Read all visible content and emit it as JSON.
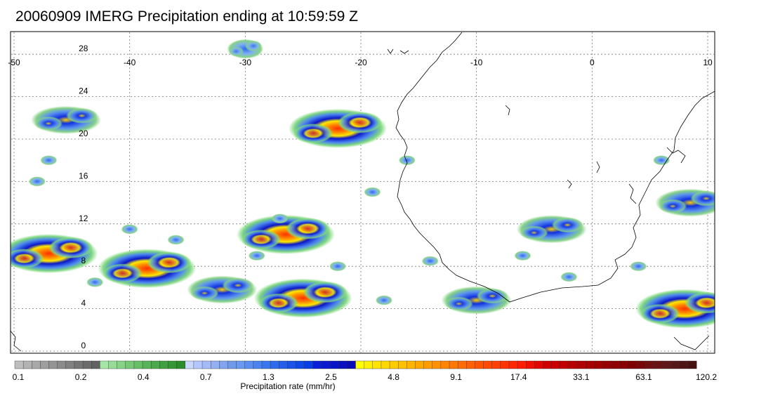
{
  "title": "20060909 IMERG Precipitation ending at 10:59:59 Z",
  "map": {
    "lon_range": [
      -50,
      10
    ],
    "lat_range": [
      -0.5,
      30
    ],
    "lon_ticks": [
      "-50",
      "-40",
      "-30",
      "-20",
      "-10",
      "0",
      "10"
    ],
    "lat_ticks": [
      "0",
      "4",
      "8",
      "12",
      "16",
      "20",
      "24",
      "28"
    ],
    "grid": "dotted",
    "coastline": "West Africa"
  },
  "colorbar": {
    "label": "Precipitation rate (mm/hr)",
    "tick_labels": [
      "0.1",
      "0.2",
      "0.4",
      "0.7",
      "1.3",
      "2.5",
      "4.8",
      "9.1",
      "17.4",
      "33.1",
      "63.1",
      "120.2"
    ],
    "colors": [
      "#bdbdbd",
      "#b2b2b2",
      "#a8a8a8",
      "#9e9e9e",
      "#949494",
      "#8a8a8a",
      "#808080",
      "#767676",
      "#6c6c6c",
      "#626262",
      "#a6e6a6",
      "#96dc96",
      "#86d286",
      "#76c876",
      "#66be66",
      "#58b458",
      "#4aaa4a",
      "#3ea03e",
      "#349634",
      "#2a8c2a",
      "#c8d8ff",
      "#b4c8ff",
      "#a2bbf8",
      "#92b0f2",
      "#82a4ee",
      "#7199ea",
      "#6a9af0",
      "#5a8ef0",
      "#4a82f0",
      "#3a76f0",
      "#2e6aee",
      "#245eec",
      "#1a52ea",
      "#1048e8",
      "#083ee6",
      "#0b1fd8",
      "#0a1ad0",
      "#0915c8",
      "#0810c0",
      "#070bb8",
      "#ffff00",
      "#fff000",
      "#ffe400",
      "#ffd800",
      "#ffcc00",
      "#ffc000",
      "#ffb400",
      "#ffa800",
      "#ff9c00",
      "#ff9000",
      "#ff8400",
      "#ff7800",
      "#ff6c00",
      "#ff6000",
      "#ff5400",
      "#ff4a00",
      "#ff4000",
      "#ff3400",
      "#ff2800",
      "#ff1c00",
      "#f01000",
      "#e00800",
      "#d00000",
      "#c80000",
      "#c00000",
      "#b80000",
      "#b00000",
      "#a80000",
      "#a00000",
      "#980000",
      "#900000",
      "#880000",
      "#800000",
      "#780808",
      "#701010",
      "#681414",
      "#601818",
      "#581818",
      "#501414",
      "#481010"
    ]
  },
  "precipitation_systems": [
    {
      "lon": -47.0,
      "lat": 9.2,
      "intensity": "heavy"
    },
    {
      "lon": -38.5,
      "lat": 7.8,
      "intensity": "heavy"
    },
    {
      "lon": -32.0,
      "lat": 5.8,
      "intensity": "moderate"
    },
    {
      "lon": -26.5,
      "lat": 11.0,
      "intensity": "heavy"
    },
    {
      "lon": -25.0,
      "lat": 5.0,
      "intensity": "heavy"
    },
    {
      "lon": -22.0,
      "lat": 21.0,
      "intensity": "heavy"
    },
    {
      "lon": -45.5,
      "lat": 21.8,
      "intensity": "moderate"
    },
    {
      "lon": -10.0,
      "lat": 4.8,
      "intensity": "moderate"
    },
    {
      "lon": 8.0,
      "lat": 4.0,
      "intensity": "heavy"
    },
    {
      "lon": 8.5,
      "lat": 14.0,
      "intensity": "moderate"
    },
    {
      "lon": -3.5,
      "lat": 11.5,
      "intensity": "moderate"
    },
    {
      "lon": -30.0,
      "lat": 28.5,
      "intensity": "light"
    }
  ]
}
